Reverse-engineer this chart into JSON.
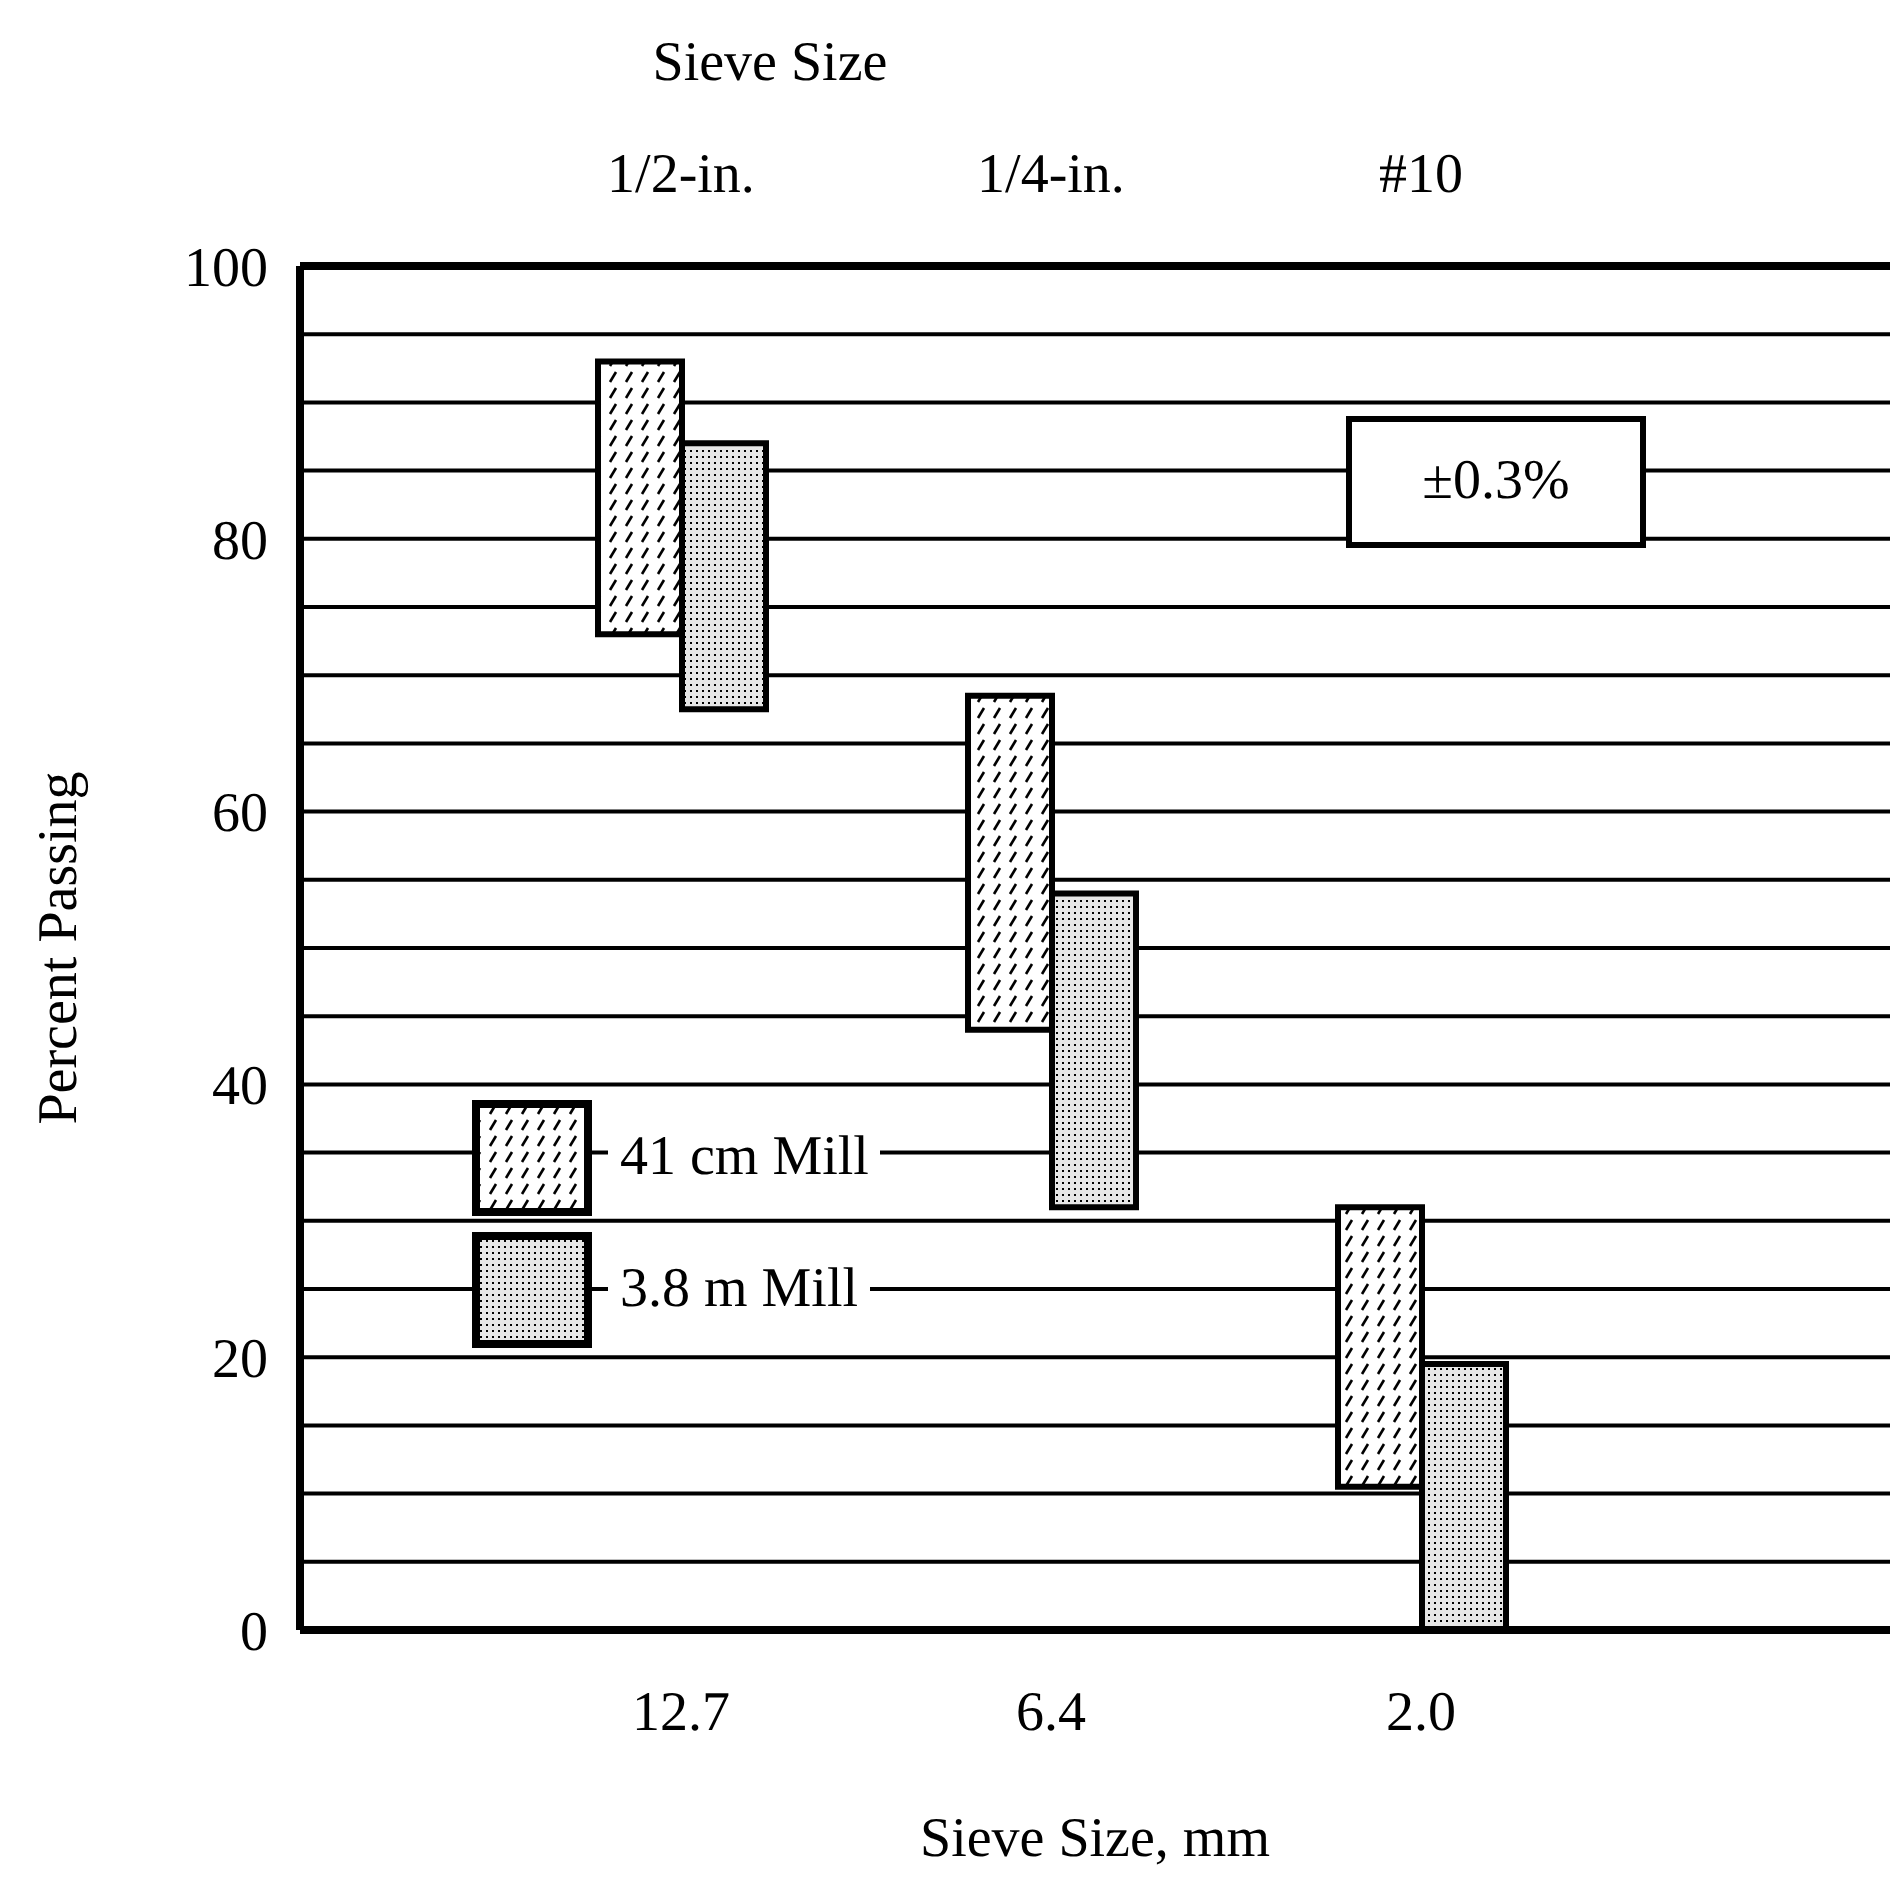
{
  "chart_data": {
    "type": "bar",
    "title": "Sieve Size",
    "xlabel": "Sieve Size, mm",
    "ylabel": "Percent Passing",
    "categories": [
      "12.7",
      "6.4",
      "2.0"
    ],
    "series": [
      {
        "name": "41 cm Mill",
        "color": "#000000",
        "base": [
          73,
          44,
          10.5
        ],
        "values": [
          20,
          24.5,
          20.5
        ]
      },
      {
        "name": "3.8 m Mill",
        "color": "#000000",
        "base": [
          67.5,
          31,
          0
        ],
        "values": [
          19.5,
          23,
          19.5
        ]
      }
    ],
    "ylim": [
      0,
      100
    ],
    "yticks": [
      0,
      {
        "value": 5,
        "label": null
      },
      {
        "value": 10,
        "label": null
      },
      {
        "value": 15,
        "label": null
      },
      20,
      {
        "value": 25,
        "label": null
      },
      {
        "value": 30,
        "label": null
      },
      {
        "value": 35,
        "label": null
      },
      40,
      {
        "value": 45,
        "label": null
      },
      {
        "value": 50,
        "label": null
      },
      {
        "value": 55,
        "label": null
      },
      60,
      {
        "value": 65,
        "label": null
      },
      {
        "value": 70,
        "label": null
      },
      {
        "value": 75,
        "label": null
      },
      80,
      {
        "value": 85,
        "label": null
      },
      {
        "value": 90,
        "label": null
      },
      {
        "value": 95,
        "label": null
      },
      100
    ],
    "grid": "y",
    "legend": "left",
    "annotations": [
      "1/2-in.",
      "1/4-in.",
      "#10",
      "±0.3%"
    ]
  }
}
